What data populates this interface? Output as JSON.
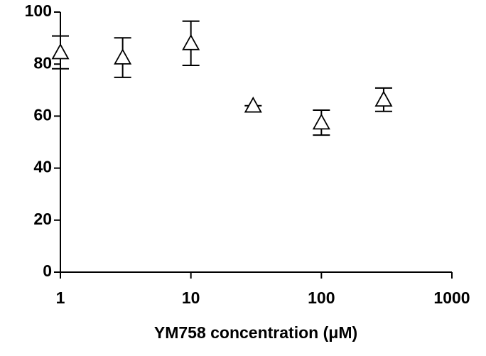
{
  "chart_data": {
    "type": "scatter",
    "x_label": "YM758 concentration (μM)",
    "x": [
      1,
      3,
      10,
      30,
      100,
      300
    ],
    "values": [
      84.5,
      82.5,
      88,
      64,
      57.5,
      66.3
    ],
    "errors": [
      6.3,
      7.6,
      8.5,
      0,
      4.8,
      4.5
    ],
    "marker": "triangle",
    "color": "#000000",
    "log_x": true,
    "xlim": [
      1,
      1000
    ],
    "xticks": [
      1,
      10,
      100,
      1000
    ],
    "ylim": [
      0,
      100
    ],
    "yticks": [
      0,
      20,
      40,
      60,
      80,
      100
    ]
  }
}
